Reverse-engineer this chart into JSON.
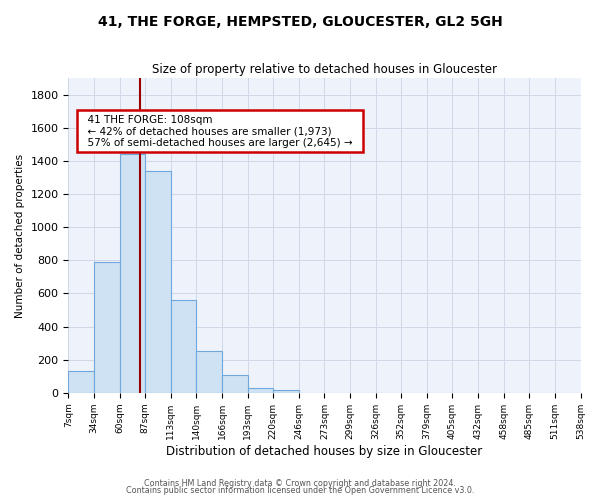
{
  "title": "41, THE FORGE, HEMPSTED, GLOUCESTER, GL2 5GH",
  "subtitle": "Size of property relative to detached houses in Gloucester",
  "xlabel": "Distribution of detached houses by size in Gloucester",
  "ylabel": "Number of detached properties",
  "bin_labels": [
    "7sqm",
    "34sqm",
    "60sqm",
    "87sqm",
    "113sqm",
    "140sqm",
    "166sqm",
    "193sqm",
    "220sqm",
    "246sqm",
    "273sqm",
    "299sqm",
    "326sqm",
    "352sqm",
    "379sqm",
    "405sqm",
    "432sqm",
    "458sqm",
    "485sqm",
    "511sqm",
    "538sqm"
  ],
  "bar_values": [
    130,
    790,
    1440,
    1340,
    560,
    250,
    110,
    30,
    20,
    0,
    0,
    0,
    0,
    0,
    0,
    0,
    0,
    0,
    0,
    0
  ],
  "bar_color": "#cfe2f3",
  "bar_edge_color": "#6fa8dc",
  "ylim": [
    0,
    1900
  ],
  "yticks": [
    0,
    200,
    400,
    600,
    800,
    1000,
    1200,
    1400,
    1600,
    1800
  ],
  "grid_color": "#d0d8e8",
  "bg_color": "#ffffff",
  "plot_bg_color": "#eef2fb",
  "red_line_x": 2.8,
  "annotation_title": "41 THE FORGE: 108sqm",
  "annotation_line1": "← 42% of detached houses are smaller (1,973)",
  "annotation_line2": "57% of semi-detached houses are larger (2,645) →",
  "annotation_box_color": "#ffffff",
  "annotation_border_color": "#cc0000",
  "footer_line1": "Contains HM Land Registry data © Crown copyright and database right 2024.",
  "footer_line2": "Contains public sector information licensed under the Open Government Licence v3.0."
}
